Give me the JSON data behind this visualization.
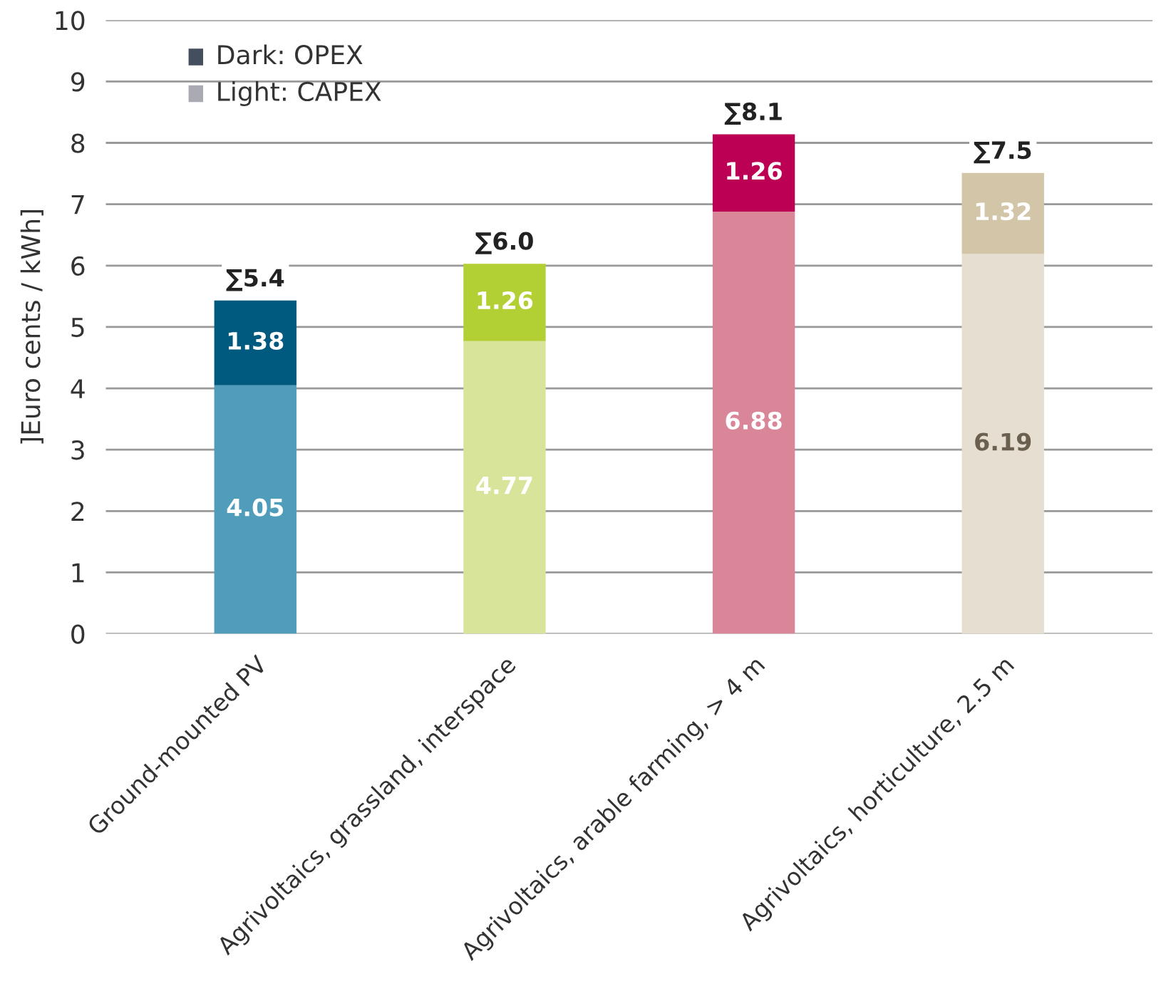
{
  "chart_data": {
    "type": "bar",
    "stacked": true,
    "ylabel": "]Euro cents / kWh]",
    "categories": [
      "Ground-mounted PV",
      "Agrivoltaics, grassland, interspace",
      "Agrivoltaics, arable farming, > 4 m",
      "Agrivoltaics, horticulture, 2.5 m"
    ],
    "series": [
      {
        "colors": [
          "#4f9dbb",
          "#d8e49a",
          "#d88698",
          "#e6dfd1"
        ],
        "values": [
          4.05,
          4.77,
          6.88,
          6.19
        ]
      },
      {
        "colors": [
          "#005a7f",
          "#b2cf34",
          "#bc0054",
          "#d3c5a8"
        ],
        "values": [
          1.38,
          1.26,
          1.26,
          1.32
        ]
      }
    ],
    "data_labels": true,
    "totals": [
      "∑5.4",
      "∑6.0",
      "∑8.1",
      "∑7.5"
    ],
    "ylim": [
      0,
      10
    ],
    "yticks": [
      0,
      1,
      2,
      3,
      4,
      5,
      6,
      7,
      8,
      9,
      10
    ],
    "grid": "y",
    "annotations": [
      "Dark: OPEX",
      "Light: CAPEX"
    ]
  }
}
